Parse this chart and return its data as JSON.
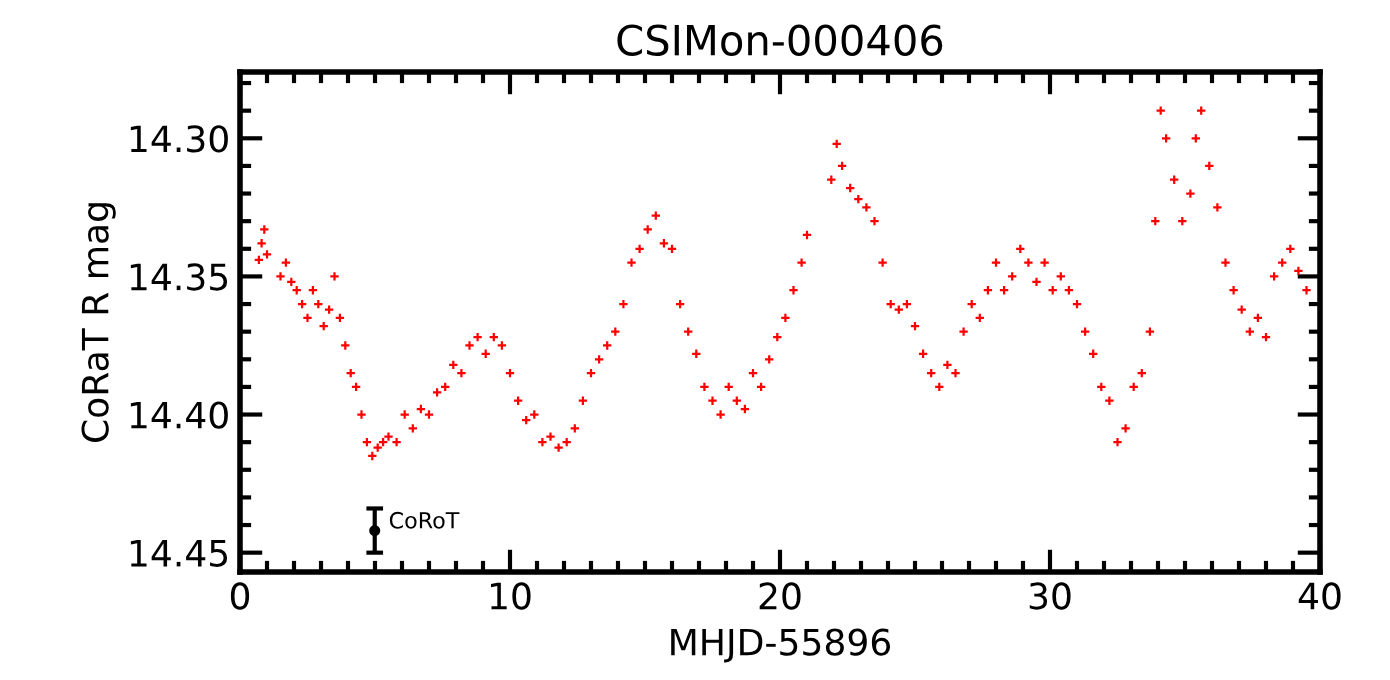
{
  "chart_data": {
    "type": "scatter",
    "title": "CSIMon-000406",
    "xlabel": "MHJD-55896",
    "ylabel": "CoRaT R mag",
    "xlim": [
      0,
      40
    ],
    "ylim": [
      14.457,
      14.276
    ],
    "xticks": [
      0,
      10,
      20,
      30,
      40
    ],
    "yticks": [
      {
        "value": 14.3,
        "label": "14.30"
      },
      {
        "value": 14.35,
        "label": "14.35"
      },
      {
        "value": 14.4,
        "label": "14.40"
      },
      {
        "value": 14.45,
        "label": "14.45"
      }
    ],
    "grid": false,
    "marker": "cross",
    "series": [
      {
        "color": "#ff0000",
        "x": [
          0.7,
          0.8,
          0.9,
          1.0,
          1.5,
          1.7,
          1.9,
          2.1,
          2.3,
          2.5,
          2.7,
          2.9,
          3.1,
          3.3,
          3.5,
          3.7,
          3.9,
          4.1,
          4.3,
          4.5,
          4.7,
          4.9,
          5.1,
          5.3,
          5.5,
          5.8,
          6.1,
          6.4,
          6.7,
          7.0,
          7.3,
          7.6,
          7.9,
          8.2,
          8.5,
          8.8,
          9.1,
          9.4,
          9.7,
          10.0,
          10.3,
          10.6,
          10.9,
          11.2,
          11.5,
          11.8,
          12.1,
          12.4,
          12.7,
          13.0,
          13.3,
          13.6,
          13.9,
          14.2,
          14.5,
          14.8,
          15.1,
          15.4,
          15.7,
          16.0,
          16.3,
          16.6,
          16.9,
          17.2,
          17.5,
          17.8,
          18.1,
          18.4,
          18.7,
          19.0,
          19.3,
          19.6,
          19.9,
          20.2,
          20.5,
          20.8,
          21.0,
          21.9,
          22.1,
          22.3,
          22.6,
          22.9,
          23.2,
          23.5,
          23.8,
          24.1,
          24.4,
          24.7,
          25.0,
          25.3,
          25.6,
          25.9,
          26.2,
          26.5,
          26.8,
          27.1,
          27.4,
          27.7,
          28.0,
          28.3,
          28.6,
          28.9,
          29.2,
          29.5,
          29.8,
          30.1,
          30.4,
          30.7,
          31.0,
          31.3,
          31.6,
          31.9,
          32.2,
          32.5,
          32.8,
          33.1,
          33.4,
          33.7,
          33.9,
          34.1,
          34.3,
          34.6,
          34.9,
          35.2,
          35.4,
          35.6,
          35.9,
          36.2,
          36.5,
          36.8,
          37.1,
          37.4,
          37.7,
          38.0,
          38.3,
          38.6,
          38.9,
          39.2,
          39.5
        ],
        "values": [
          14.344,
          14.338,
          14.333,
          14.342,
          14.35,
          14.345,
          14.352,
          14.355,
          14.36,
          14.365,
          14.355,
          14.36,
          14.368,
          14.362,
          14.35,
          14.365,
          14.375,
          14.385,
          14.39,
          14.4,
          14.41,
          14.415,
          14.412,
          14.41,
          14.408,
          14.41,
          14.4,
          14.405,
          14.398,
          14.4,
          14.392,
          14.39,
          14.382,
          14.385,
          14.375,
          14.372,
          14.378,
          14.372,
          14.375,
          14.385,
          14.395,
          14.402,
          14.4,
          14.41,
          14.408,
          14.412,
          14.41,
          14.405,
          14.395,
          14.385,
          14.38,
          14.375,
          14.37,
          14.36,
          14.345,
          14.34,
          14.333,
          14.328,
          14.338,
          14.34,
          14.36,
          14.37,
          14.378,
          14.39,
          14.395,
          14.4,
          14.39,
          14.395,
          14.398,
          14.385,
          14.39,
          14.38,
          14.372,
          14.365,
          14.355,
          14.345,
          14.335,
          14.315,
          14.302,
          14.31,
          14.318,
          14.322,
          14.325,
          14.33,
          14.345,
          14.36,
          14.362,
          14.36,
          14.368,
          14.378,
          14.385,
          14.39,
          14.382,
          14.385,
          14.37,
          14.36,
          14.365,
          14.355,
          14.345,
          14.355,
          14.35,
          14.34,
          14.345,
          14.352,
          14.345,
          14.355,
          14.35,
          14.355,
          14.36,
          14.37,
          14.378,
          14.39,
          14.395,
          14.41,
          14.405,
          14.39,
          14.385,
          14.37,
          14.33,
          14.29,
          14.3,
          14.315,
          14.33,
          14.32,
          14.3,
          14.29,
          14.31,
          14.325,
          14.345,
          14.355,
          14.362,
          14.37,
          14.365,
          14.372,
          14.35,
          14.345,
          14.34,
          14.348,
          14.355
        ]
      },
      {
        "name": "CoRoT",
        "color": "#000000",
        "x": [
          4.99
        ],
        "values": [
          14.442
        ],
        "errors": [
          0.008
        ],
        "marker": "circle"
      }
    ]
  }
}
